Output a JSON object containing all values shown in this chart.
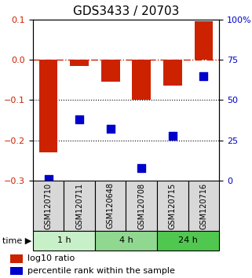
{
  "title": "GDS3433 / 20703",
  "samples": [
    "GSM120710",
    "GSM120711",
    "GSM120648",
    "GSM120708",
    "GSM120715",
    "GSM120716"
  ],
  "log10_ratio": [
    -0.23,
    -0.015,
    -0.055,
    -0.1,
    -0.065,
    0.095
  ],
  "percentile_rank": [
    1,
    38,
    32,
    8,
    28,
    65
  ],
  "ylim_left": [
    -0.3,
    0.1
  ],
  "ylim_right": [
    0,
    100
  ],
  "yticks_left": [
    -0.3,
    -0.2,
    -0.1,
    0.0,
    0.1
  ],
  "yticks_right": [
    0,
    25,
    50,
    75,
    100
  ],
  "time_groups": [
    {
      "label": "1 h",
      "indices": [
        0,
        1
      ],
      "color": "#c8f0c8"
    },
    {
      "label": "4 h",
      "indices": [
        2,
        3
      ],
      "color": "#90d890"
    },
    {
      "label": "24 h",
      "indices": [
        4,
        5
      ],
      "color": "#50c850"
    }
  ],
  "bar_color": "#cc2200",
  "dot_color": "#0000cc",
  "bar_width": 0.6,
  "dot_size": 60,
  "title_fontsize": 11,
  "tick_fontsize": 8,
  "label_fontsize": 8,
  "legend_fontsize": 8,
  "sample_label_fontsize": 7,
  "figsize": [
    3.21,
    3.54
  ],
  "dpi": 100
}
